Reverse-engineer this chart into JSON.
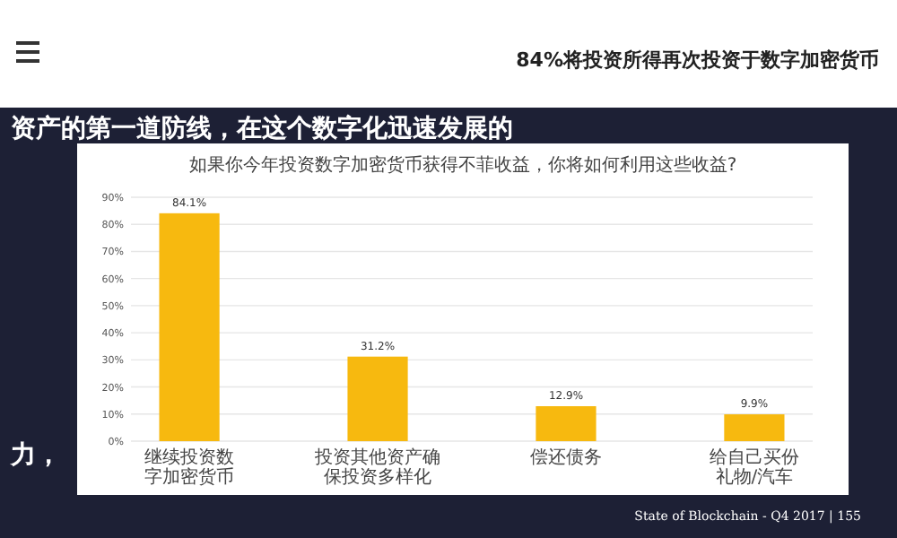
{
  "chart_data": {
    "type": "bar",
    "title": "84%将投资所得再次投资于数字加密货币",
    "subtitle": "如果你今年投资数字加密货币获得不菲收益，你将如何利用这些收益?",
    "categories": [
      "继续投资数字加密货币",
      "投资其他资产确保投资多样化",
      "偿还债务",
      "给自己买份礼物/汽车"
    ],
    "values": [
      84.1,
      31.2,
      12.9,
      9.9
    ],
    "value_labels": [
      "84.1%",
      "31.2%",
      "12.9%",
      "9.9%"
    ],
    "color": "#f7b90f",
    "ylim": [
      0,
      90
    ],
    "yticks": [
      {
        "value": 0,
        "label": "0%"
      },
      {
        "value": 10,
        "label": "10%"
      },
      {
        "value": 20,
        "label": "20%"
      },
      {
        "value": 30,
        "label": "30%"
      },
      {
        "value": 40,
        "label": "40%"
      },
      {
        "value": 50,
        "label": "50%"
      },
      {
        "value": 60,
        "label": "60%"
      },
      {
        "value": 70,
        "label": "70%"
      },
      {
        "value": 80,
        "label": "80%"
      },
      {
        "value": 90,
        "label": "90%"
      }
    ],
    "grid": "y",
    "annotations": [
      "资产的第一道防线，在这个数字化迅速发展的",
      "力，",
      "State of Blockchain - Q4 2017 | 155"
    ]
  }
}
